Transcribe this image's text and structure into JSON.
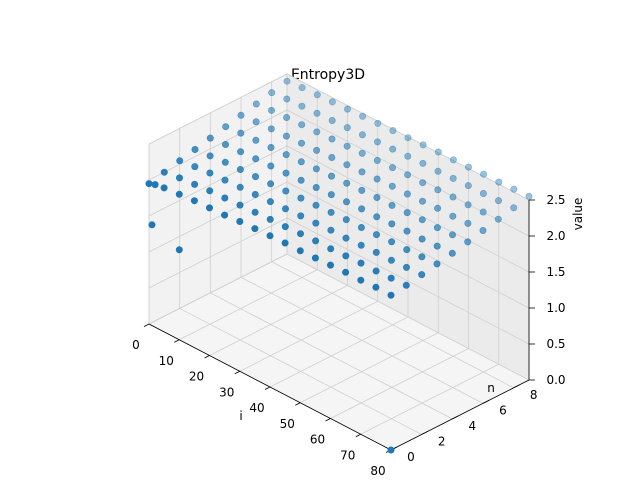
{
  "chart_data": {
    "type": "scatter",
    "title": "Entropy3D",
    "xlabel": "i",
    "ylabel": "n",
    "zlabel": "value",
    "xlim": [
      0,
      80
    ],
    "ylim": [
      0,
      9
    ],
    "zlim": [
      0,
      2.5
    ],
    "xticks": [
      0,
      10,
      20,
      30,
      40,
      50,
      60,
      70,
      80
    ],
    "yticks": [
      0,
      2,
      4,
      6,
      8
    ],
    "zticks": [
      0.0,
      0.5,
      1.0,
      1.5,
      2.0,
      2.5
    ],
    "grid": true,
    "marker_color": "#1f77b4",
    "series": [
      {
        "n": 0,
        "x": [
          0,
          2,
          5,
          10,
          15,
          20,
          25,
          30,
          35,
          40,
          45,
          50,
          55,
          60,
          65,
          70,
          75,
          80
        ],
        "z": [
          1.95,
          1.98,
          2.0,
          2.02,
          2.04,
          2.05,
          2.06,
          2.08,
          2.09,
          2.1,
          2.11,
          2.11,
          2.12,
          2.13,
          2.14,
          2.14,
          2.15,
          2.15
        ]
      },
      {
        "n": 1,
        "x": [
          0,
          5,
          10,
          15,
          20,
          25,
          30,
          35,
          40,
          45,
          50,
          55,
          60,
          65,
          70,
          75,
          80
        ],
        "z": [
          2.0,
          2.03,
          2.05,
          2.07,
          2.08,
          2.09,
          2.1,
          2.11,
          2.12,
          2.13,
          2.14,
          2.14,
          2.15,
          2.16,
          2.16,
          2.17,
          2.18
        ]
      },
      {
        "n": 2,
        "x": [
          0,
          5,
          10,
          15,
          20,
          25,
          30,
          35,
          40,
          45,
          50,
          55,
          60,
          65,
          70,
          75,
          80
        ],
        "z": [
          2.05,
          2.08,
          2.1,
          2.11,
          2.12,
          2.13,
          2.14,
          2.15,
          2.16,
          2.17,
          2.18,
          2.18,
          2.19,
          2.2,
          2.2,
          2.21,
          2.22
        ]
      },
      {
        "n": 3,
        "x": [
          0,
          5,
          10,
          15,
          20,
          25,
          30,
          35,
          40,
          45,
          50,
          55,
          60,
          65,
          70,
          75,
          80
        ],
        "z": [
          2.1,
          2.12,
          2.14,
          2.15,
          2.16,
          2.17,
          2.18,
          2.19,
          2.2,
          2.21,
          2.22,
          2.22,
          2.23,
          2.24,
          2.24,
          2.25,
          2.26
        ]
      },
      {
        "n": 4,
        "x": [
          0,
          5,
          10,
          15,
          20,
          25,
          30,
          35,
          40,
          45,
          50,
          55,
          60,
          65,
          70,
          75,
          80
        ],
        "z": [
          2.15,
          2.17,
          2.18,
          2.19,
          2.2,
          2.21,
          2.22,
          2.23,
          2.24,
          2.25,
          2.26,
          2.26,
          2.27,
          2.28,
          2.28,
          2.29,
          2.3
        ]
      },
      {
        "n": 5,
        "x": [
          0,
          5,
          10,
          15,
          20,
          25,
          30,
          35,
          40,
          45,
          50,
          55,
          60,
          65,
          70,
          75,
          80
        ],
        "z": [
          2.2,
          2.22,
          2.23,
          2.24,
          2.25,
          2.26,
          2.27,
          2.28,
          2.29,
          2.3,
          2.31,
          2.31,
          2.32,
          2.33,
          2.33,
          2.34,
          2.35
        ]
      },
      {
        "n": 6,
        "x": [
          0,
          5,
          10,
          15,
          20,
          25,
          30,
          35,
          40,
          45,
          50,
          55,
          60,
          65,
          70,
          75,
          80
        ],
        "z": [
          2.25,
          2.27,
          2.28,
          2.29,
          2.3,
          2.31,
          2.32,
          2.33,
          2.34,
          2.35,
          2.36,
          2.36,
          2.37,
          2.38,
          2.38,
          2.39,
          2.4
        ]
      },
      {
        "n": 7,
        "x": [
          0,
          5,
          10,
          15,
          20,
          25,
          30,
          35,
          40,
          45,
          50,
          55,
          60,
          65,
          70,
          75,
          80
        ],
        "z": [
          2.3,
          2.32,
          2.33,
          2.34,
          2.35,
          2.36,
          2.37,
          2.38,
          2.39,
          2.4,
          2.41,
          2.41,
          2.42,
          2.43,
          2.43,
          2.44,
          2.45
        ]
      },
      {
        "n": 8,
        "x": [
          0,
          5,
          10,
          15,
          20,
          25,
          30,
          35,
          40,
          45,
          50,
          55,
          60,
          65,
          70,
          75,
          80
        ],
        "z": [
          2.35,
          2.37,
          2.38,
          2.39,
          2.4,
          2.41,
          2.42,
          2.43,
          2.44,
          2.45,
          2.46,
          2.46,
          2.47,
          2.48,
          2.48,
          2.49,
          2.5
        ]
      },
      {
        "n": 9,
        "x": [
          0,
          5,
          10,
          15,
          20,
          25,
          30,
          35,
          40,
          45,
          50,
          55,
          60,
          65,
          70,
          75,
          80
        ],
        "z": [
          2.4,
          2.42,
          2.43,
          2.44,
          2.45,
          2.46,
          2.47,
          2.48,
          2.49,
          2.5,
          2.51,
          2.51,
          2.52,
          2.53,
          2.53,
          2.54,
          2.55
        ]
      }
    ],
    "outliers": [
      {
        "x": 1,
        "n": 0,
        "z": 1.4
      },
      {
        "x": 10,
        "n": 0,
        "z": 1.25
      },
      {
        "x": 80,
        "n": 0,
        "z": 0.0
      }
    ]
  }
}
